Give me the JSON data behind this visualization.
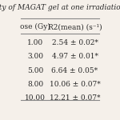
{
  "title": "lity of MAGAT gel at one irradiation",
  "col1_header": "ose (Gy)",
  "col2_header": "R2(mean) (s⁻¹)",
  "rows": [
    [
      "1.00",
      "2.54 ± 0.02*"
    ],
    [
      "3.00",
      "4.97 ± 0.01*"
    ],
    [
      "5.00",
      "6.64 ± 0.05*"
    ],
    [
      "8.00",
      "10.06 ± 0.07*"
    ],
    [
      "10.00",
      "12.21 ± 0.07*"
    ]
  ],
  "bg_color": "#f5f0ea",
  "text_color": "#2a2a2a",
  "line_color": "#888888",
  "title_fontsize": 6.5,
  "header_fontsize": 6.5,
  "cell_fontsize": 6.5
}
